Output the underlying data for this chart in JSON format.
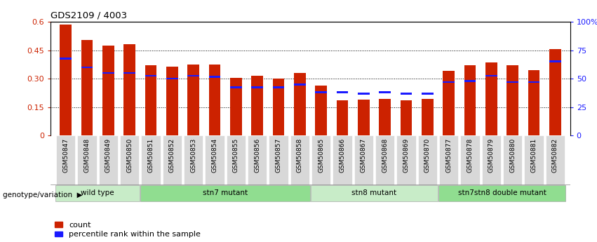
{
  "title": "GDS2109 / 4003",
  "samples": [
    "GSM50847",
    "GSM50848",
    "GSM50849",
    "GSM50850",
    "GSM50851",
    "GSM50852",
    "GSM50853",
    "GSM50854",
    "GSM50855",
    "GSM50856",
    "GSM50857",
    "GSM50858",
    "GSM50865",
    "GSM50866",
    "GSM50867",
    "GSM50868",
    "GSM50869",
    "GSM50870",
    "GSM50877",
    "GSM50878",
    "GSM50879",
    "GSM50880",
    "GSM50881",
    "GSM50882"
  ],
  "count_values": [
    0.585,
    0.505,
    0.475,
    0.48,
    0.37,
    0.365,
    0.375,
    0.375,
    0.305,
    0.315,
    0.3,
    0.33,
    0.265,
    0.185,
    0.19,
    0.195,
    0.185,
    0.195,
    0.34,
    0.37,
    0.385,
    0.37,
    0.345,
    0.455
  ],
  "percentile_values": [
    0.405,
    0.36,
    0.33,
    0.33,
    0.315,
    0.3,
    0.315,
    0.31,
    0.255,
    0.255,
    0.255,
    0.27,
    0.228,
    0.228,
    0.222,
    0.228,
    0.222,
    0.222,
    0.282,
    0.288,
    0.315,
    0.282,
    0.282,
    0.39
  ],
  "bar_color": "#cc2200",
  "blue_color": "#1a1aff",
  "ylim_left": [
    0,
    0.6
  ],
  "ylim_right": [
    0,
    100
  ],
  "yticks_left": [
    0,
    0.15,
    0.3,
    0.45,
    0.6
  ],
  "ytick_labels_left": [
    "0",
    "0.15",
    "0.30",
    "0.45",
    "0.6"
  ],
  "yticks_right": [
    0,
    25,
    50,
    75,
    100
  ],
  "ytick_labels_right": [
    "0",
    "25",
    "50",
    "75",
    "100%"
  ],
  "groups": [
    {
      "label": "wild type",
      "start": 0,
      "end": 3,
      "color": "#c8ecc8"
    },
    {
      "label": "stn7 mutant",
      "start": 4,
      "end": 11,
      "color": "#90dd90"
    },
    {
      "label": "stn8 mutant",
      "start": 12,
      "end": 17,
      "color": "#c8ecc8"
    },
    {
      "label": "stn7stn8 double mutant",
      "start": 18,
      "end": 23,
      "color": "#90dd90"
    }
  ],
  "group_label_prefix": "genotype/variation",
  "legend_count_label": "count",
  "legend_pct_label": "percentile rank within the sample",
  "bar_width": 0.55,
  "bg_color": "#ffffff",
  "tick_label_color_left": "#cc2200",
  "tick_label_color_right": "#1a1aff",
  "xticklabel_bg": "#d8d8d8"
}
